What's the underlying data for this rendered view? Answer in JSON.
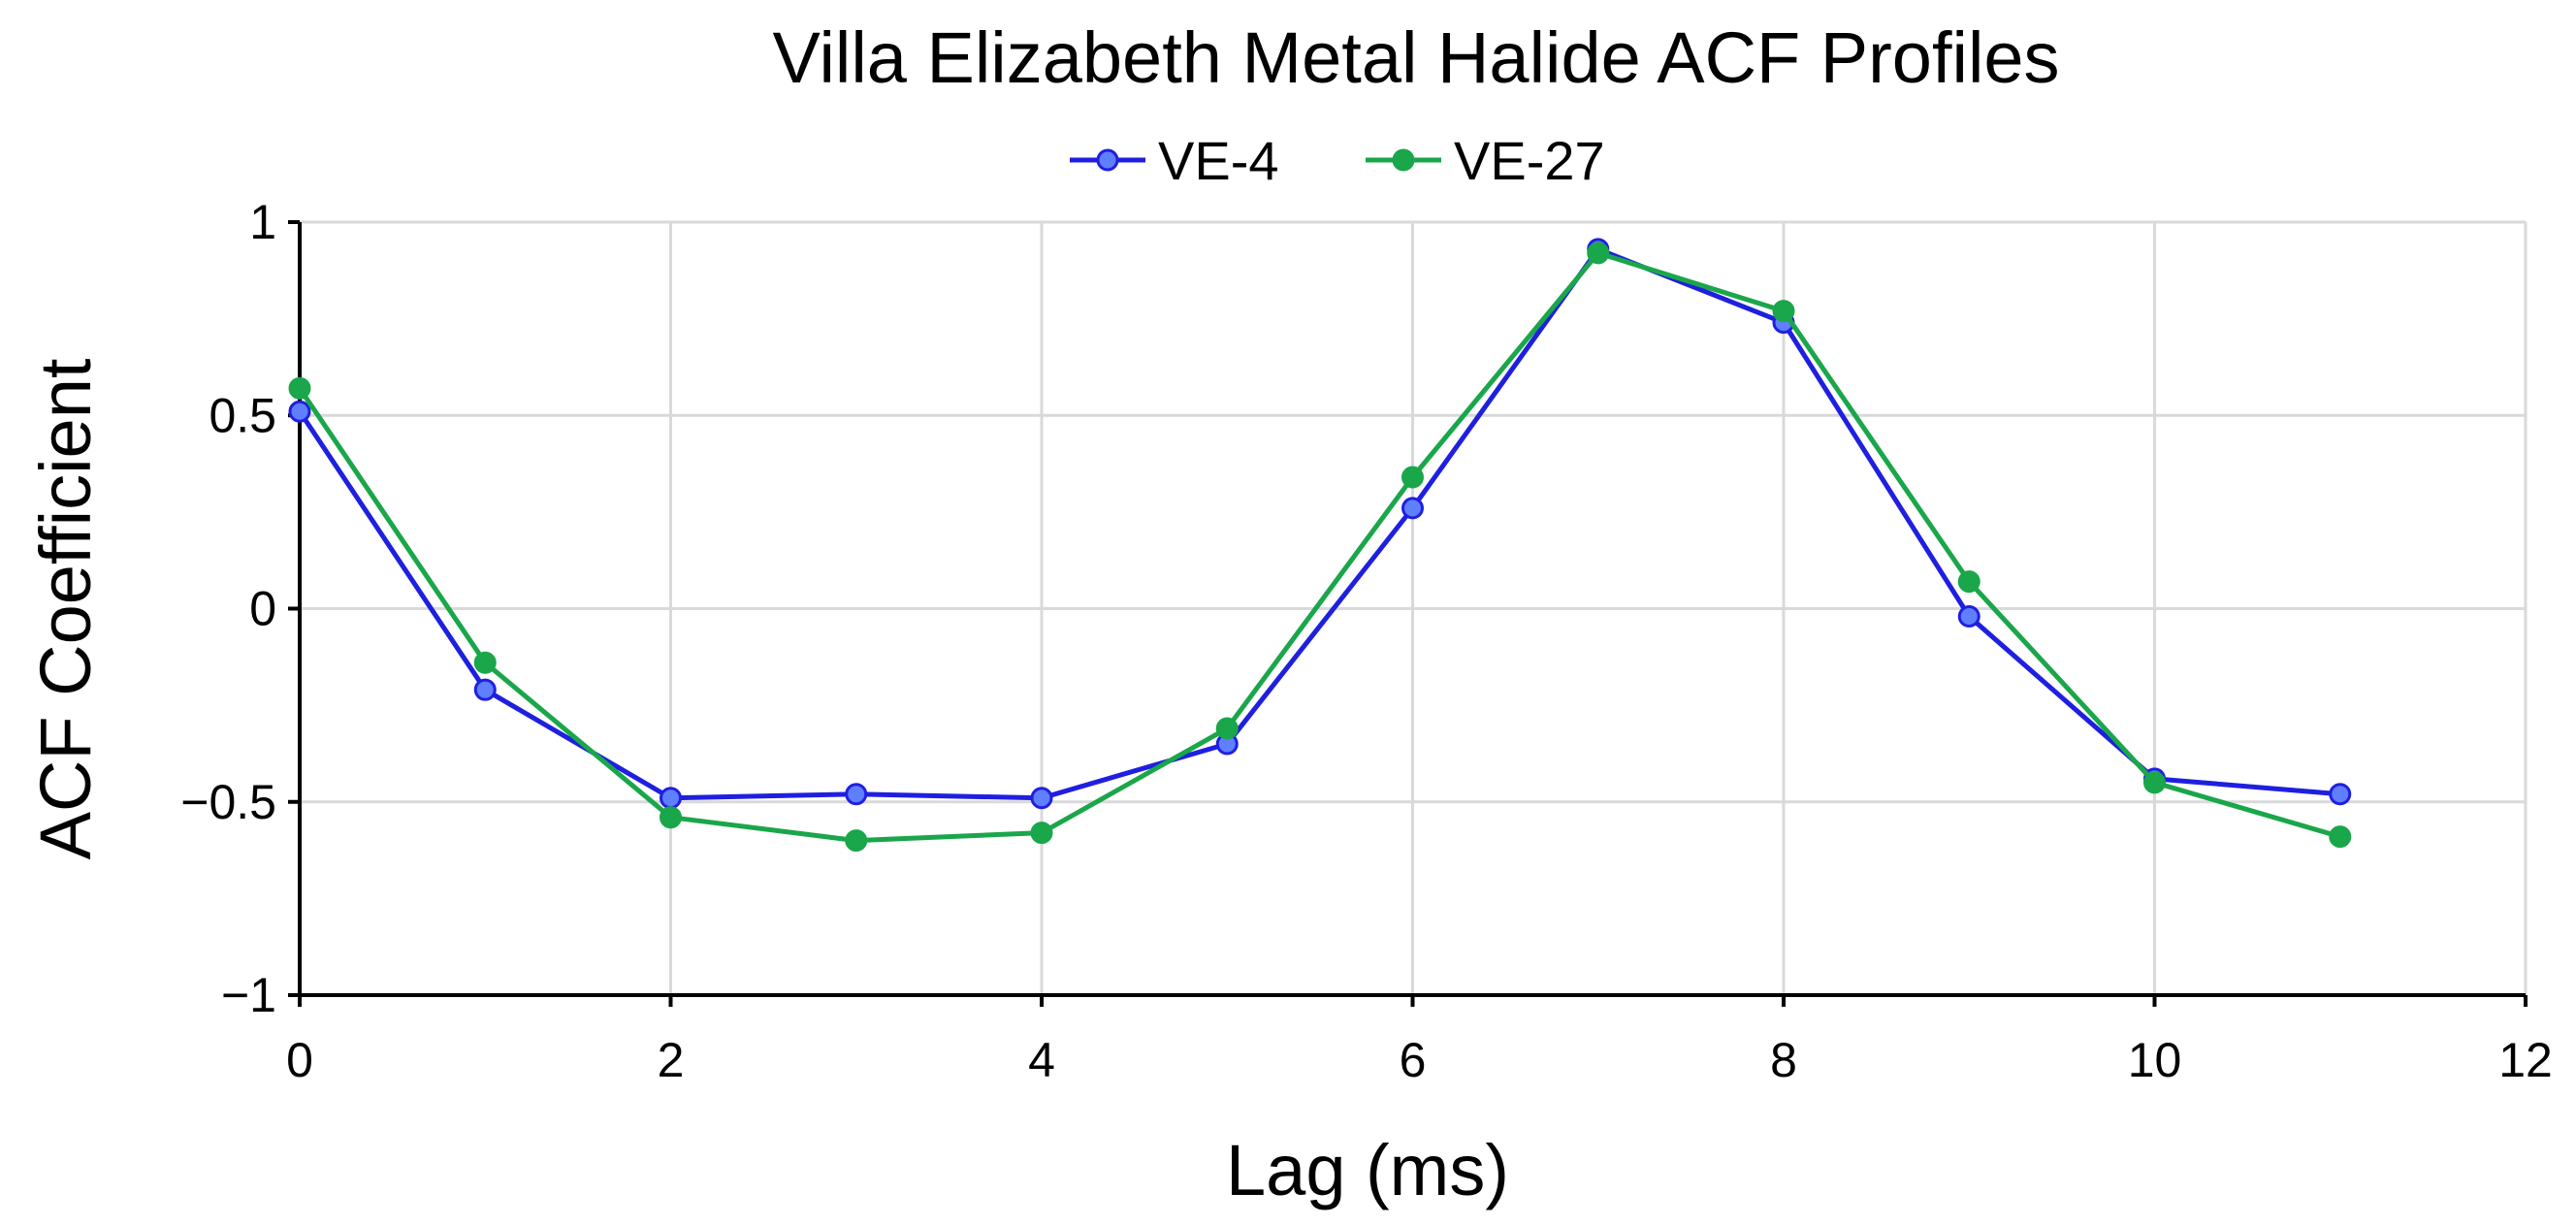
{
  "chart_data": {
    "type": "line",
    "title": "Villa Elizabeth Metal Halide ACF Profiles",
    "xlabel": "Lag (ms)",
    "ylabel": "ACF Coefficient",
    "xlim": [
      0,
      12
    ],
    "ylim": [
      -1,
      1
    ],
    "x_ticks": [
      0,
      2,
      4,
      6,
      8,
      10,
      12
    ],
    "y_ticks": [
      1,
      0.5,
      0,
      -0.5,
      -1
    ],
    "x_tick_labels": [
      "0",
      "2",
      "4",
      "6",
      "8",
      "10",
      "12"
    ],
    "y_tick_labels": [
      "1",
      "0.5",
      "0",
      "−0.5",
      "−1"
    ],
    "grid": true,
    "legend_position": "top-center",
    "x": [
      0,
      1,
      2,
      3,
      4,
      5,
      6,
      7,
      8,
      9,
      10,
      11
    ],
    "series": [
      {
        "name": "VE-4",
        "color": "#1f1fe0",
        "marker_fill": "#5f7fff",
        "values": [
          0.51,
          -0.21,
          -0.49,
          -0.48,
          -0.49,
          -0.35,
          0.26,
          0.93,
          0.74,
          -0.02,
          -0.44,
          -0.48
        ]
      },
      {
        "name": "VE-27",
        "color": "#1aa64a",
        "marker_fill": "#1aa64a",
        "values": [
          0.57,
          -0.14,
          -0.54,
          -0.6,
          -0.58,
          -0.31,
          0.34,
          0.92,
          0.77,
          0.07,
          -0.45,
          -0.59
        ]
      }
    ]
  }
}
